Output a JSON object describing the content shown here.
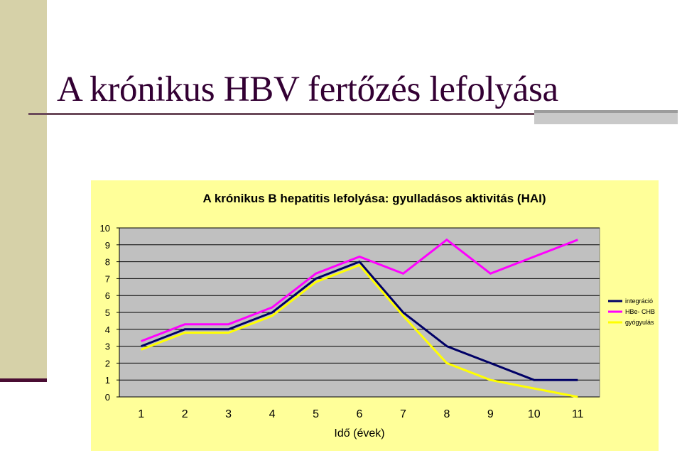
{
  "slide": {
    "title": "A krónikus HBV fertőzés lefolyása"
  },
  "colors": {
    "side_band": "#d6d1a8",
    "side_rule": "#4a0d33",
    "title_text": "#330033",
    "chart_background": "#ffff99",
    "plot_area": "#c0c0c0"
  },
  "chart_data": {
    "type": "line",
    "title": "A krónikus B hepatitis lefolyása: gyulladásos aktivitás (HAI)",
    "xlabel": "Idő (évek)",
    "ylabel": "",
    "categories": [
      "1",
      "2",
      "3",
      "4",
      "5",
      "6",
      "7",
      "8",
      "9",
      "10",
      "11"
    ],
    "ylim": [
      0,
      10
    ],
    "yticks": [
      "0",
      "1",
      "2",
      "3",
      "4",
      "5",
      "6",
      "7",
      "8",
      "9",
      "10"
    ],
    "grid": true,
    "legend_position": "right",
    "series": [
      {
        "name": "integráció",
        "color": "#000066",
        "values": [
          3,
          4,
          4,
          5,
          7,
          8,
          5,
          3,
          2,
          1,
          1
        ]
      },
      {
        "name": "HBe- CHB",
        "color": "#ff00ff",
        "values": [
          3.3,
          4.3,
          4.3,
          5.3,
          7.3,
          8.3,
          7.3,
          9.3,
          7.3,
          8.3,
          9.3
        ]
      },
      {
        "name": "gyógyulás",
        "color": "#ffff00",
        "values": [
          2.8,
          3.8,
          3.8,
          4.8,
          6.8,
          7.8,
          4.8,
          2,
          1,
          0.5,
          0
        ]
      }
    ]
  }
}
